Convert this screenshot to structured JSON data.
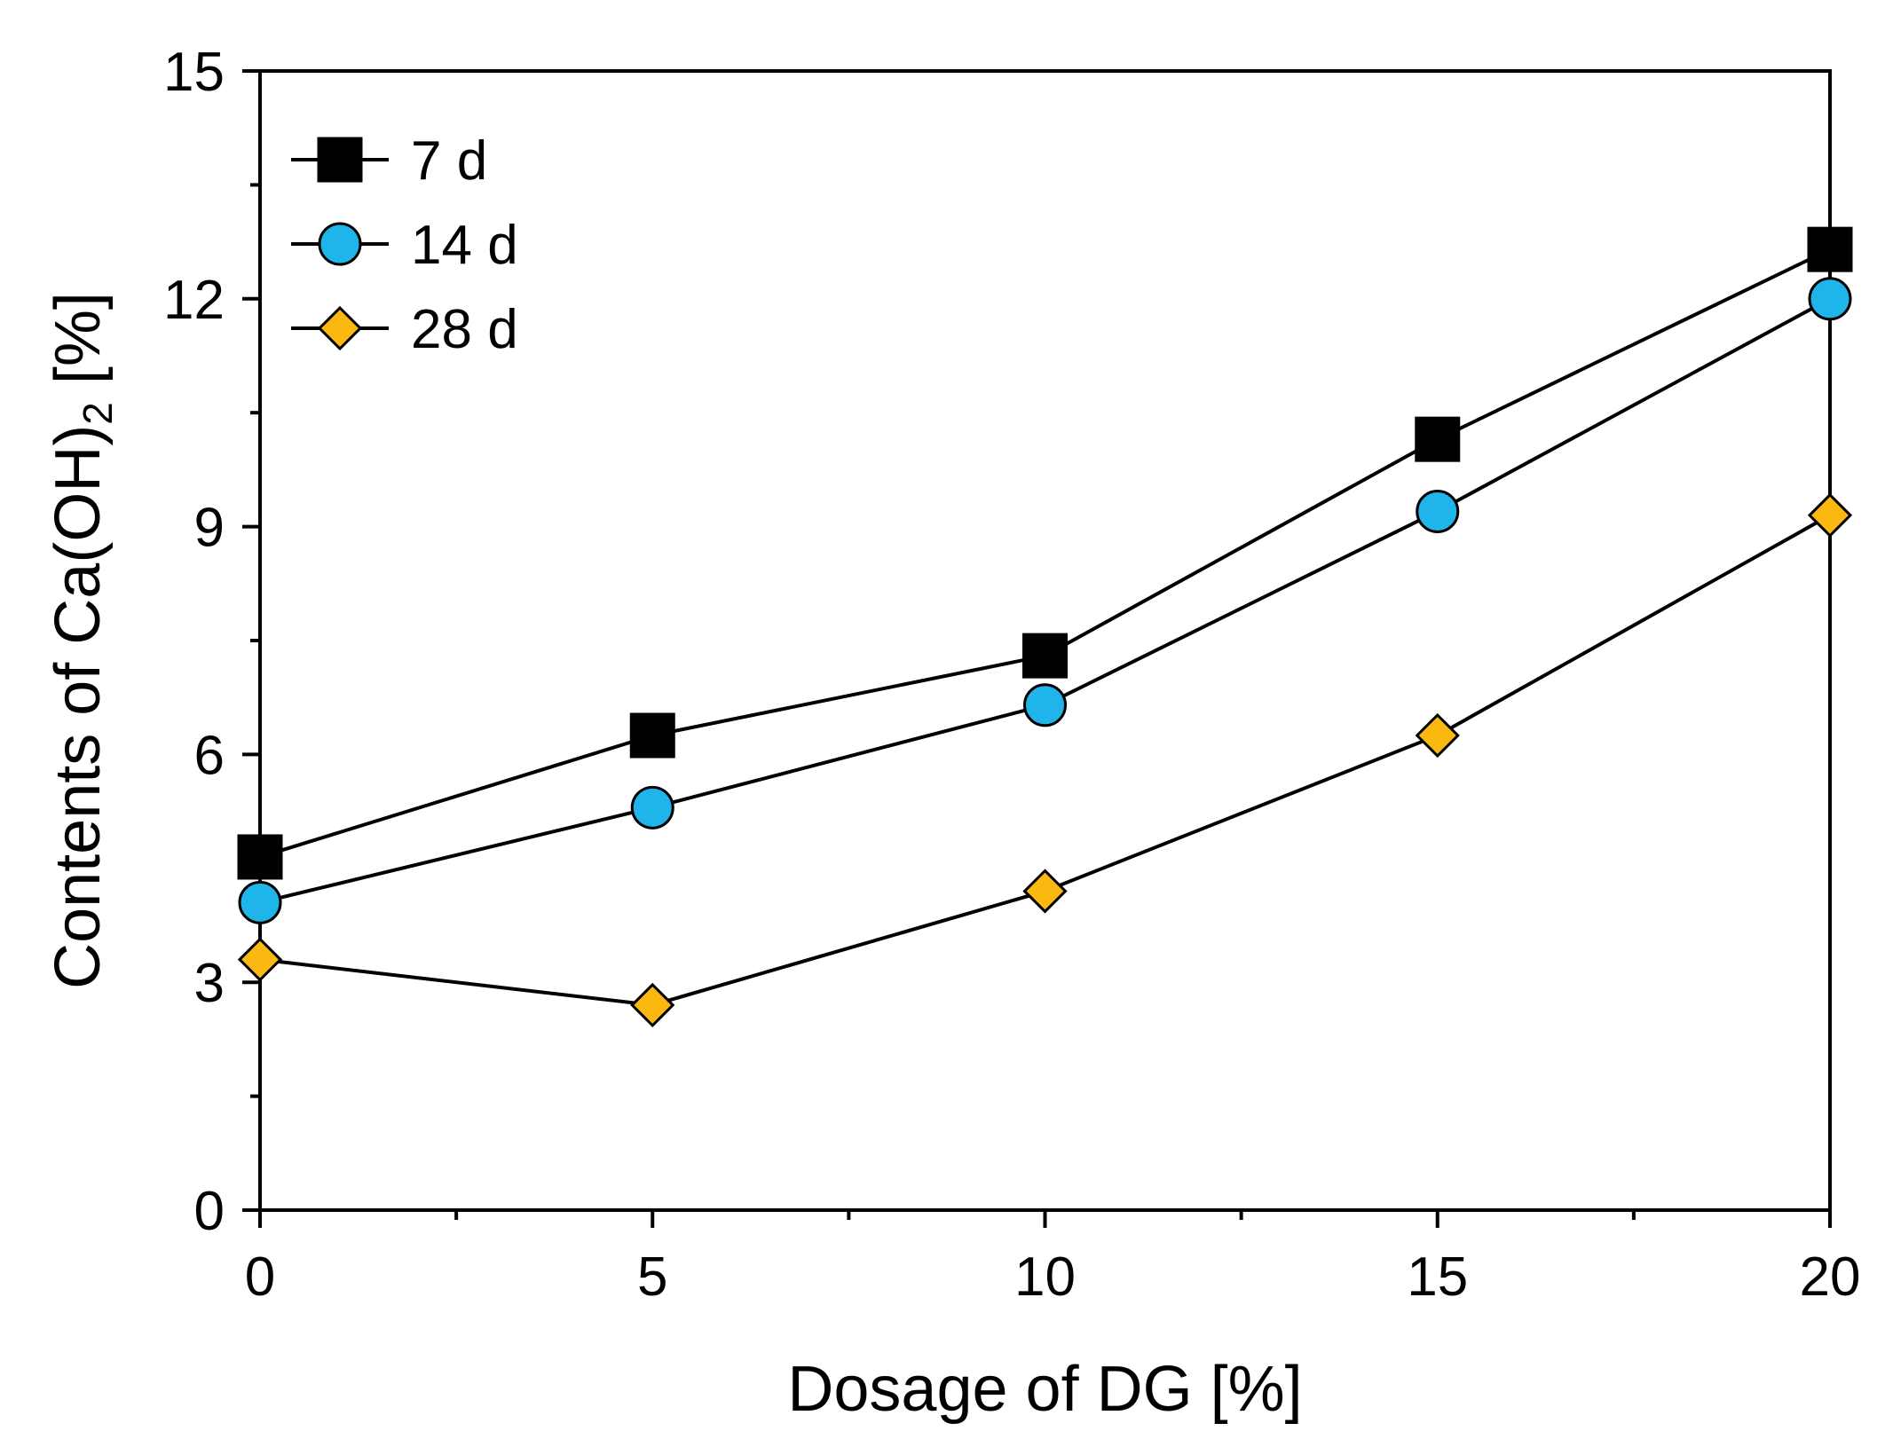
{
  "chart_data": {
    "type": "line",
    "title": "",
    "xlabel": "Dosage of DG [%]",
    "ylabel": {
      "prefix": "Contents of Ca(OH)",
      "subscript": "2",
      "suffix": " [%]"
    },
    "xlim": [
      0,
      20
    ],
    "ylim": [
      0,
      15
    ],
    "xticks": [
      0,
      5,
      10,
      15,
      20
    ],
    "xminor": [
      2.5,
      7.5,
      12.5,
      17.5
    ],
    "yticks": [
      0,
      3,
      6,
      9,
      12,
      15
    ],
    "yminor": [
      1.5,
      4.5,
      7.5,
      10.5,
      13.5
    ],
    "grid": false,
    "legend_position": "top-left",
    "x": [
      0,
      5,
      10,
      15,
      20
    ],
    "series": [
      {
        "name": "7 d",
        "marker": "square",
        "color": "#000000",
        "values": [
          4.65,
          6.25,
          7.3,
          10.15,
          12.65
        ]
      },
      {
        "name": "14 d",
        "marker": "circle",
        "color": "#1fb4ea",
        "values": [
          4.05,
          5.3,
          6.65,
          9.2,
          12.0
        ]
      },
      {
        "name": "28 d",
        "marker": "diamond",
        "color": "#fbb810",
        "values": [
          3.3,
          2.7,
          4.2,
          6.25,
          9.15
        ]
      }
    ]
  }
}
